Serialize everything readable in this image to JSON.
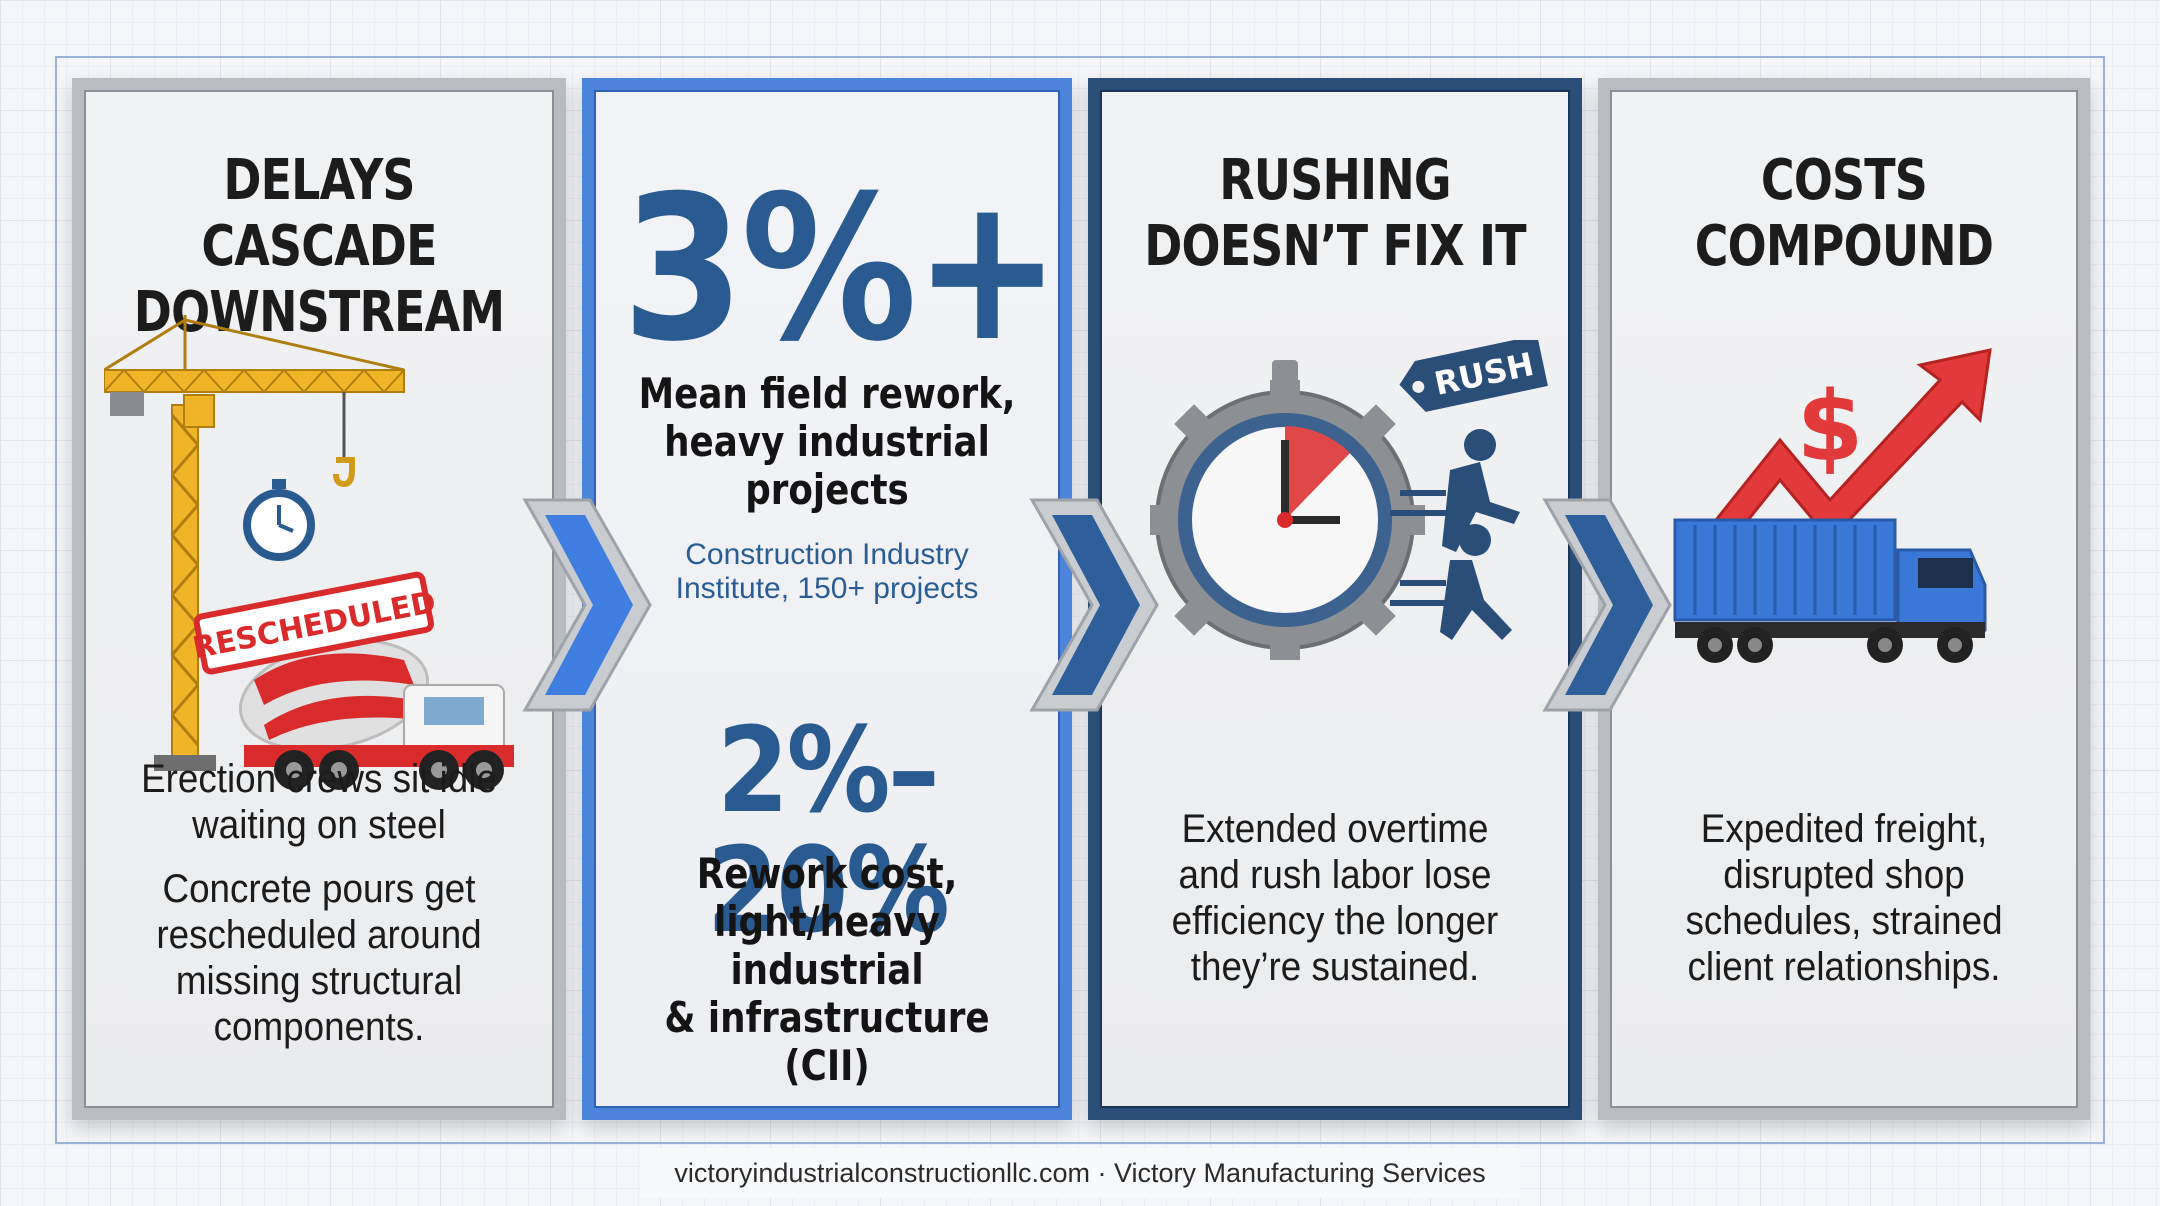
{
  "panels": {
    "delays": {
      "title_line1": "DELAYS CASCADE",
      "title_line2": "DOWNSTREAM",
      "stamp": "RESCHEDULED",
      "text1_line1": "Erection crews sit idle",
      "text1_line2": "waiting on steel",
      "text2_line1": "Concrete pours get",
      "text2_line2": "rescheduled around",
      "text2_line3": "missing structural",
      "text2_line4": "components."
    },
    "rework": {
      "stat1": "3%+",
      "stat1_line1": "Mean field rework,",
      "stat1_line2": "heavy industrial",
      "stat1_line3": "projects",
      "source_line1": "Construction Industry",
      "source_line2": "Institute, 150+ projects",
      "stat2": "2%–20%",
      "stat2_line1": "Rework cost,",
      "stat2_line2": "light/heavy industrial",
      "stat2_line3": "& infrastructure (CII)"
    },
    "rushing": {
      "title_line1": "RUSHING",
      "title_line2": "DOESN’T FIX IT",
      "tag": "RUSH",
      "text_line1": "Extended overtime",
      "text_line2": "and rush labor lose",
      "text_line3": "efficiency the longer",
      "text_line4": "they’re sustained."
    },
    "costs": {
      "title_line1": "COSTS",
      "title_line2": "COMPOUND",
      "dollar": "$",
      "text_line1": "Expedited freight,",
      "text_line2": "disrupted shop",
      "text_line3": "schedules, strained",
      "text_line4": "client relationships."
    }
  },
  "footer": "victoryindustrialconstructionllc.com · Victory Manufacturing Services",
  "colors": {
    "accent_blue": "#2a5b90",
    "panel2_border": "#4c84dc",
    "panel3_border": "#2b4e78",
    "red": "#e23a3a",
    "crane_yellow": "#f0b527"
  },
  "icons": [
    "crane-icon",
    "stopwatch-icon",
    "mixer-truck-icon",
    "gear-clock-icon",
    "running-worker-icon",
    "rising-arrow-icon",
    "container-truck-icon",
    "chevron-right-icon"
  ]
}
